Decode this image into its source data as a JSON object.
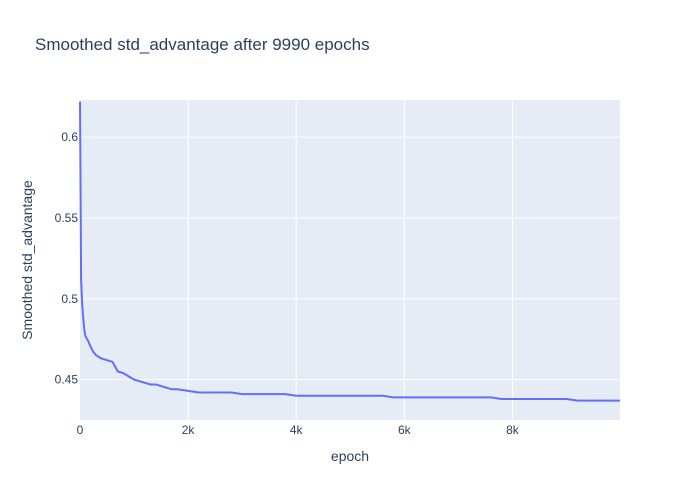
{
  "chart_data": {
    "type": "line",
    "title": "Smoothed std_advantage after 9990 epochs",
    "xlabel": "epoch",
    "ylabel": "Smoothed std_advantage",
    "xlim": [
      0,
      9990
    ],
    "ylim": [
      0.425,
      0.623
    ],
    "x_ticks": [
      0,
      2000,
      4000,
      6000,
      8000
    ],
    "x_tick_labels": [
      "0",
      "2k",
      "4k",
      "6k",
      "8k"
    ],
    "y_ticks": [
      0.45,
      0.5,
      0.55,
      0.6
    ],
    "y_tick_labels": [
      "0.45",
      "0.5",
      "0.55",
      "0.6"
    ],
    "grid": true,
    "series": [
      {
        "color": "#636efa",
        "x": [
          0,
          10,
          20,
          40,
          60,
          80,
          100,
          150,
          200,
          250,
          300,
          400,
          500,
          600,
          700,
          800,
          900,
          1000,
          1100,
          1200,
          1300,
          1400,
          1500,
          1600,
          1700,
          1800,
          2000,
          2200,
          2400,
          2600,
          2800,
          3000,
          3200,
          3400,
          3600,
          3800,
          4000,
          4200,
          4400,
          4600,
          4800,
          5000,
          5200,
          5400,
          5600,
          5800,
          6000,
          6200,
          6400,
          6600,
          6800,
          7000,
          7200,
          7400,
          7600,
          7800,
          8000,
          8200,
          8400,
          8600,
          8800,
          9000,
          9200,
          9400,
          9600,
          9800,
          9990
        ],
        "values": [
          0.622,
          0.57,
          0.512,
          0.497,
          0.488,
          0.481,
          0.477,
          0.474,
          0.47,
          0.467,
          0.465,
          0.463,
          0.462,
          0.461,
          0.455,
          0.454,
          0.452,
          0.45,
          0.449,
          0.448,
          0.447,
          0.447,
          0.446,
          0.445,
          0.444,
          0.444,
          0.443,
          0.442,
          0.442,
          0.442,
          0.442,
          0.441,
          0.441,
          0.441,
          0.441,
          0.441,
          0.44,
          0.44,
          0.44,
          0.44,
          0.44,
          0.44,
          0.44,
          0.44,
          0.44,
          0.439,
          0.439,
          0.439,
          0.439,
          0.439,
          0.439,
          0.439,
          0.439,
          0.439,
          0.439,
          0.438,
          0.438,
          0.438,
          0.438,
          0.438,
          0.438,
          0.438,
          0.437,
          0.437,
          0.437,
          0.437,
          0.437
        ]
      }
    ]
  }
}
